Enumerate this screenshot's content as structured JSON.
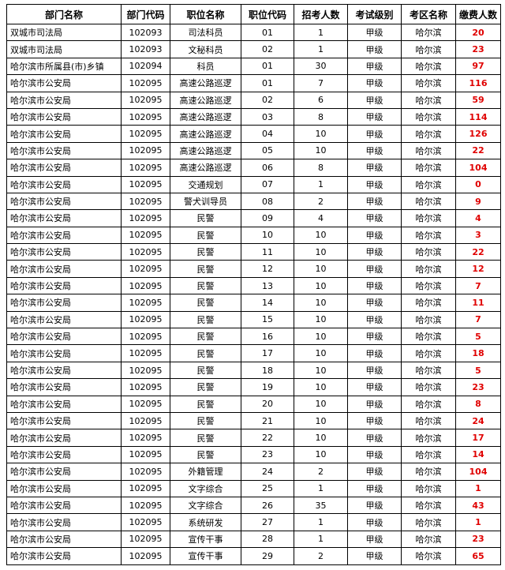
{
  "headers": [
    "部门名称",
    "部门代码",
    "职位名称",
    "职位代码",
    "招考人数",
    "考试级别",
    "考区名称",
    "缴费人数"
  ],
  "rows": [
    [
      "双城市司法局",
      "102093",
      "司法科员",
      "01",
      "1",
      "甲级",
      "哈尔滨",
      "20"
    ],
    [
      "双城市司法局",
      "102093",
      "文秘科员",
      "02",
      "1",
      "甲级",
      "哈尔滨",
      "23"
    ],
    [
      "哈尔滨市所属县(市)乡镇",
      "102094",
      "科员",
      "01",
      "30",
      "甲级",
      "哈尔滨",
      "97"
    ],
    [
      "哈尔滨市公安局",
      "102095",
      "高速公路巡逻",
      "01",
      "7",
      "甲级",
      "哈尔滨",
      "116"
    ],
    [
      "哈尔滨市公安局",
      "102095",
      "高速公路巡逻",
      "02",
      "6",
      "甲级",
      "哈尔滨",
      "59"
    ],
    [
      "哈尔滨市公安局",
      "102095",
      "高速公路巡逻",
      "03",
      "8",
      "甲级",
      "哈尔滨",
      "114"
    ],
    [
      "哈尔滨市公安局",
      "102095",
      "高速公路巡逻",
      "04",
      "10",
      "甲级",
      "哈尔滨",
      "126"
    ],
    [
      "哈尔滨市公安局",
      "102095",
      "高速公路巡逻",
      "05",
      "10",
      "甲级",
      "哈尔滨",
      "22"
    ],
    [
      "哈尔滨市公安局",
      "102095",
      "高速公路巡逻",
      "06",
      "8",
      "甲级",
      "哈尔滨",
      "104"
    ],
    [
      "哈尔滨市公安局",
      "102095",
      "交通规划",
      "07",
      "1",
      "甲级",
      "哈尔滨",
      "0"
    ],
    [
      "哈尔滨市公安局",
      "102095",
      "警犬训导员",
      "08",
      "2",
      "甲级",
      "哈尔滨",
      "9"
    ],
    [
      "哈尔滨市公安局",
      "102095",
      "民警",
      "09",
      "4",
      "甲级",
      "哈尔滨",
      "4"
    ],
    [
      "哈尔滨市公安局",
      "102095",
      "民警",
      "10",
      "10",
      "甲级",
      "哈尔滨",
      "3"
    ],
    [
      "哈尔滨市公安局",
      "102095",
      "民警",
      "11",
      "10",
      "甲级",
      "哈尔滨",
      "22"
    ],
    [
      "哈尔滨市公安局",
      "102095",
      "民警",
      "12",
      "10",
      "甲级",
      "哈尔滨",
      "12"
    ],
    [
      "哈尔滨市公安局",
      "102095",
      "民警",
      "13",
      "10",
      "甲级",
      "哈尔滨",
      "7"
    ],
    [
      "哈尔滨市公安局",
      "102095",
      "民警",
      "14",
      "10",
      "甲级",
      "哈尔滨",
      "11"
    ],
    [
      "哈尔滨市公安局",
      "102095",
      "民警",
      "15",
      "10",
      "甲级",
      "哈尔滨",
      "7"
    ],
    [
      "哈尔滨市公安局",
      "102095",
      "民警",
      "16",
      "10",
      "甲级",
      "哈尔滨",
      "5"
    ],
    [
      "哈尔滨市公安局",
      "102095",
      "民警",
      "17",
      "10",
      "甲级",
      "哈尔滨",
      "18"
    ],
    [
      "哈尔滨市公安局",
      "102095",
      "民警",
      "18",
      "10",
      "甲级",
      "哈尔滨",
      "5"
    ],
    [
      "哈尔滨市公安局",
      "102095",
      "民警",
      "19",
      "10",
      "甲级",
      "哈尔滨",
      "23"
    ],
    [
      "哈尔滨市公安局",
      "102095",
      "民警",
      "20",
      "10",
      "甲级",
      "哈尔滨",
      "8"
    ],
    [
      "哈尔滨市公安局",
      "102095",
      "民警",
      "21",
      "10",
      "甲级",
      "哈尔滨",
      "24"
    ],
    [
      "哈尔滨市公安局",
      "102095",
      "民警",
      "22",
      "10",
      "甲级",
      "哈尔滨",
      "17"
    ],
    [
      "哈尔滨市公安局",
      "102095",
      "民警",
      "23",
      "10",
      "甲级",
      "哈尔滨",
      "14"
    ],
    [
      "哈尔滨市公安局",
      "102095",
      "外籍管理",
      "24",
      "2",
      "甲级",
      "哈尔滨",
      "104"
    ],
    [
      "哈尔滨市公安局",
      "102095",
      "文字综合",
      "25",
      "1",
      "甲级",
      "哈尔滨",
      "1"
    ],
    [
      "哈尔滨市公安局",
      "102095",
      "文字综合",
      "26",
      "35",
      "甲级",
      "哈尔滨",
      "43"
    ],
    [
      "哈尔滨市公安局",
      "102095",
      "系统研发",
      "27",
      "1",
      "甲级",
      "哈尔滨",
      "1"
    ],
    [
      "哈尔滨市公安局",
      "102095",
      "宣传干事",
      "28",
      "1",
      "甲级",
      "哈尔滨",
      "23"
    ],
    [
      "哈尔滨市公安局",
      "102095",
      "宣传干事",
      "29",
      "2",
      "甲级",
      "哈尔滨",
      "65"
    ]
  ],
  "colors": {
    "fee_count": "#e00000"
  }
}
